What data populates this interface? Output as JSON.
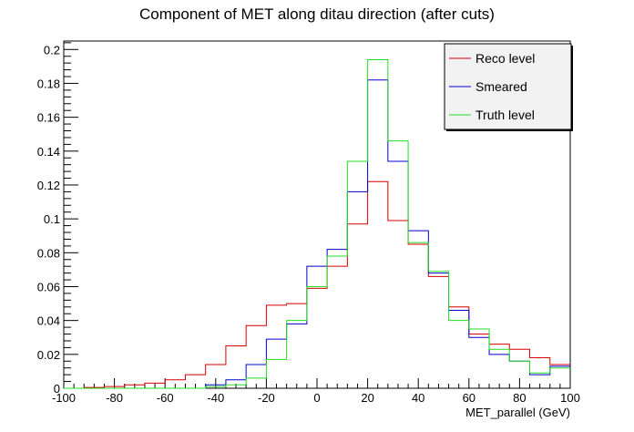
{
  "chart_data": {
    "type": "line",
    "title": "Component of MET along ditau direction (after cuts)",
    "xlabel": "MET_parallel (GeV)",
    "ylabel": "",
    "xlim": [
      -100,
      100
    ],
    "ylim": [
      0,
      0.205
    ],
    "grid": false,
    "legend_placement": "top-right",
    "x_ticks": [
      -100,
      -80,
      -60,
      -40,
      -20,
      0,
      20,
      40,
      60,
      80,
      100
    ],
    "y_ticks": [
      0,
      0.02,
      0.04,
      0.06,
      0.08,
      0.1,
      0.12,
      0.14,
      0.16,
      0.18,
      0.2
    ],
    "y_tick_labels": [
      "0",
      "0.02",
      "0.04",
      "0.06",
      "0.08",
      "0.1",
      "0.12",
      "0.14",
      "0.16",
      "0.18",
      "0.2"
    ],
    "bin_edges": [
      -100,
      -92,
      -84,
      -76,
      -68,
      -60,
      -52,
      -44,
      -36,
      -28,
      -20,
      -12,
      -4,
      4,
      12,
      20,
      28,
      36,
      44,
      52,
      60,
      68,
      76,
      84,
      92,
      100
    ],
    "series": [
      {
        "name": "Reco level",
        "color": "#d40000",
        "values": [
          0,
          0.0005,
          0.001,
          0.002,
          0.003,
          0.005,
          0.008,
          0.014,
          0.025,
          0.037,
          0.049,
          0.05,
          0.059,
          0.072,
          0.097,
          0.122,
          0.099,
          0.085,
          0.066,
          0.048,
          0.032,
          0.026,
          0.023,
          0.018,
          0.014
        ]
      },
      {
        "name": "Smeared",
        "color": "#0000cc",
        "values": [
          0,
          0,
          0,
          0,
          0,
          0,
          0,
          0.002,
          0.005,
          0.014,
          0.029,
          0.038,
          0.072,
          0.082,
          0.116,
          0.182,
          0.134,
          0.093,
          0.068,
          0.046,
          0.03,
          0.02,
          0.016,
          0.008,
          0.013
        ]
      },
      {
        "name": "Truth level",
        "color": "#22dd22",
        "values": [
          0,
          0,
          0,
          0,
          0,
          0,
          0,
          0.001,
          0.002,
          0.006,
          0.017,
          0.04,
          0.06,
          0.078,
          0.134,
          0.194,
          0.146,
          0.086,
          0.069,
          0.04,
          0.035,
          0.023,
          0.016,
          0.009,
          0.012
        ]
      }
    ]
  }
}
